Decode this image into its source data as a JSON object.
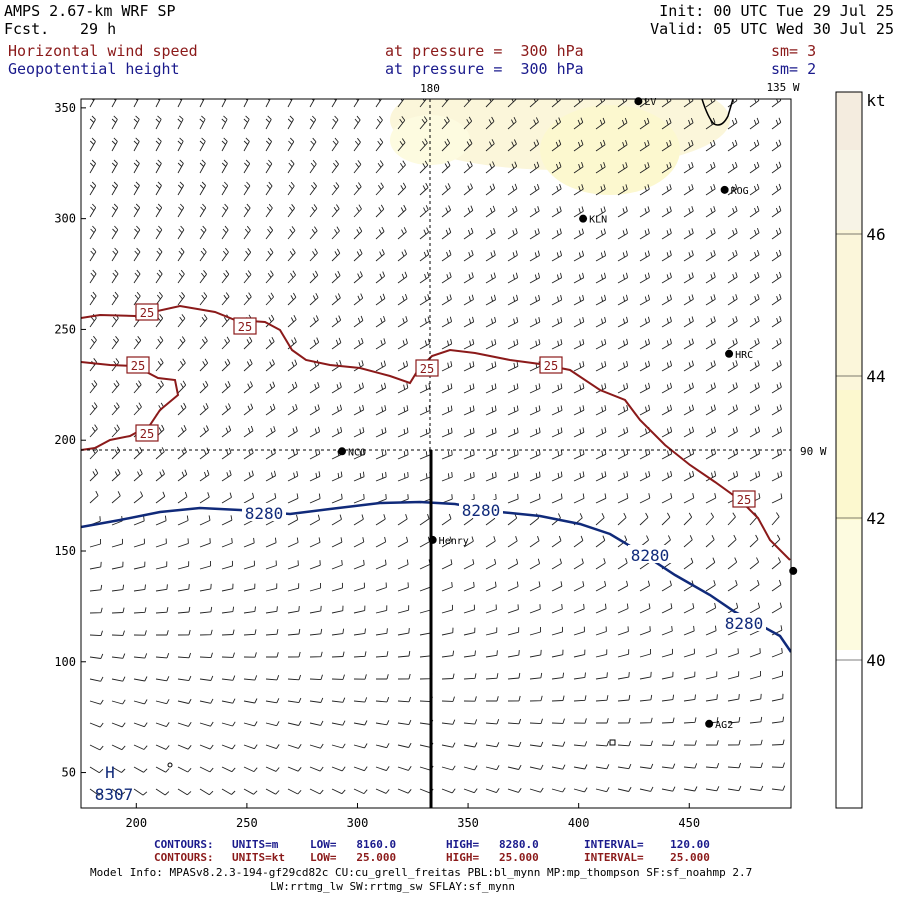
{
  "header": {
    "model": "AMPS 2.67-km WRF SP",
    "forecast_label": "Fcst.",
    "forecast_hours": "29 h",
    "init": "Init: 00 UTC Tue 29 Jul 25",
    "valid": "Valid: 05 UTC Wed 30 Jul 25",
    "field1_name": "Horizontal wind speed",
    "field1_level": "at pressure =  300 hPa",
    "field1_sm": "sm= 3",
    "field2_name": "Geopotential height",
    "field2_level": "at pressure =  300 hPa",
    "field2_sm": "sm= 2"
  },
  "map": {
    "meridian_top_label": "180",
    "meridian_135_label": "135 W",
    "meridian_90_label": "90 W",
    "y_ticks": [
      "350",
      "300",
      "250",
      "200",
      "150",
      "100",
      "50"
    ],
    "x_ticks": [
      "200",
      "250",
      "300",
      "350",
      "400",
      "450"
    ],
    "stations": [
      {
        "name": "LV",
        "x": 427,
        "y": 353
      },
      {
        "name": "ROG",
        "x": 466,
        "y": 313
      },
      {
        "name": "KLN",
        "x": 402,
        "y": 300
      },
      {
        "name": "HRC",
        "x": 468,
        "y": 239
      },
      {
        "name": "NCO",
        "x": 293,
        "y": 195
      },
      {
        "name": "Henry",
        "x": 334,
        "y": 155
      },
      {
        "name": "",
        "x": 497,
        "y": 141
      },
      {
        "name": "AG2",
        "x": 459,
        "y": 72
      }
    ],
    "high_marker": {
      "symbol": "H",
      "value": "8307",
      "x": 189,
      "y": 51
    },
    "height_contour_label": "8280",
    "speed_contour_label": "25",
    "height_color": "#102a7a",
    "speed_color": "#8b1a1a"
  },
  "colorbar": {
    "unit": "kt",
    "labels": [
      "46",
      "44",
      "42",
      "40"
    ],
    "colors": [
      "#f4ecdf",
      "#f7f3e6",
      "#fbf6da",
      "#fcf8cf",
      "#fdfbe0",
      "#ffffff"
    ]
  },
  "footer": {
    "line1": {
      "contours": "CONTOURS:",
      "units": "UNITS=m",
      "low": "LOW=   8160.0",
      "high": "HIGH=   8280.0",
      "interval": "INTERVAL=    120.00"
    },
    "line2": {
      "contours": "CONTOURS:",
      "units": "UNITS=kt",
      "low": "LOW=   25.000",
      "high": "HIGH=   25.000",
      "interval": "INTERVAL=    25.000"
    },
    "info1": "Model Info: MPASv8.2.3-194-gf29cd82c CU:cu_grell_freitas PBL:bl_mynn MP:mp_thompson SF:sf_noahmp 2.7",
    "info2": "LW:rrtmg_lw SW:rrtmg_sw SFLAY:sf_mynn"
  }
}
